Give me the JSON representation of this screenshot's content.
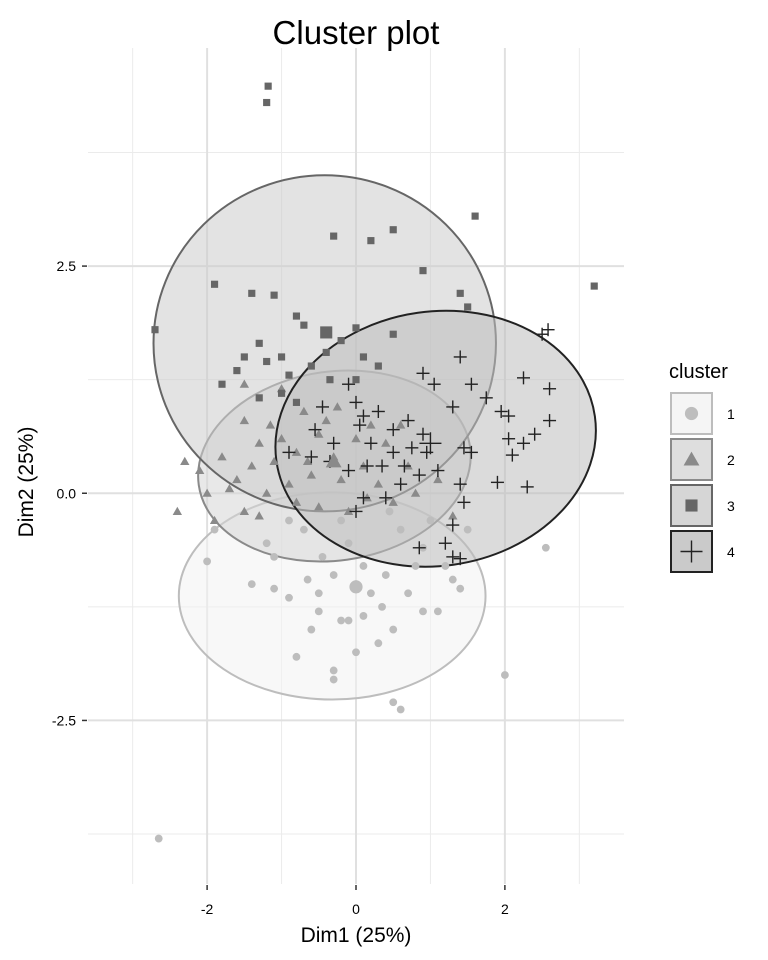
{
  "chart_data": {
    "type": "scatter",
    "title": "Cluster plot",
    "xlabel": "Dim1 (25%)",
    "ylabel": "Dim2 (25%)",
    "xlim": [
      -3.6,
      3.6
    ],
    "ylim": [
      -4.3,
      4.9
    ],
    "x_ticks": [
      -2,
      0,
      2
    ],
    "x_tick_labels": [
      "-2",
      "0",
      "2"
    ],
    "y_ticks": [
      -2.5,
      0.0,
      2.5
    ],
    "y_tick_labels": [
      "-2.5",
      "0.0",
      "2.5"
    ],
    "grid": true,
    "legend_title": "cluster",
    "legend_position": "right",
    "series": [
      {
        "name": "1",
        "shape": "circle",
        "color": "#bdbdbd",
        "fill": "#f2f2f2",
        "ellipse": {
          "cx": -0.32,
          "cy": -1.13,
          "rx": 2.06,
          "ry": 1.14,
          "angle": 0
        },
        "center": [
          0.0,
          -1.03
        ],
        "points": [
          [
            -2.65,
            -3.8
          ],
          [
            2.0,
            -2.0
          ],
          [
            2.55,
            -0.6
          ],
          [
            0.5,
            -2.3
          ],
          [
            0.6,
            -2.38
          ],
          [
            -0.3,
            -2.05
          ],
          [
            -0.3,
            -1.95
          ],
          [
            -0.8,
            -1.8
          ],
          [
            0.0,
            -1.75
          ],
          [
            0.3,
            -1.65
          ],
          [
            -0.6,
            -1.5
          ],
          [
            -0.2,
            -1.4
          ],
          [
            0.1,
            -1.35
          ],
          [
            -0.1,
            -1.4
          ],
          [
            0.5,
            -1.5
          ],
          [
            0.9,
            -1.3
          ],
          [
            1.1,
            -1.3
          ],
          [
            -1.1,
            -1.05
          ],
          [
            -0.9,
            -1.15
          ],
          [
            -1.4,
            -1.0
          ],
          [
            -2.0,
            -0.75
          ],
          [
            -1.9,
            -0.4
          ],
          [
            -1.1,
            -0.7
          ],
          [
            -0.5,
            -1.1
          ],
          [
            0.2,
            -1.1
          ],
          [
            0.4,
            -0.9
          ],
          [
            0.7,
            -1.1
          ],
          [
            1.2,
            -0.8
          ],
          [
            1.3,
            -0.95
          ],
          [
            -0.45,
            -0.7
          ],
          [
            0.9,
            -0.6
          ],
          [
            -0.7,
            -0.4
          ],
          [
            -0.1,
            -0.55
          ],
          [
            0.6,
            -0.4
          ],
          [
            1.5,
            -0.4
          ],
          [
            -1.2,
            -0.55
          ],
          [
            -0.3,
            -0.9
          ],
          [
            0.1,
            -0.8
          ],
          [
            -0.5,
            -1.3
          ],
          [
            0.35,
            -1.25
          ],
          [
            0.8,
            -0.8
          ],
          [
            1.4,
            -1.05
          ],
          [
            -0.2,
            -0.3
          ],
          [
            0.45,
            -0.2
          ],
          [
            -0.9,
            -0.3
          ],
          [
            1.0,
            -0.3
          ],
          [
            -0.65,
            -0.95
          ],
          [
            0.0,
            -1.0
          ]
        ]
      },
      {
        "name": "2",
        "shape": "triangle",
        "color": "#8a8a8a",
        "fill": "#d6d6d6",
        "ellipse": {
          "cx": -0.29,
          "cy": 0.3,
          "rx": 1.84,
          "ry": 1.04,
          "angle": -8
        },
        "center": [
          -0.3,
          0.35
        ],
        "points": [
          [
            -2.4,
            -0.2
          ],
          [
            -2.0,
            0.0
          ],
          [
            -2.1,
            0.25
          ],
          [
            -2.3,
            0.35
          ],
          [
            -1.8,
            0.4
          ],
          [
            -1.6,
            0.15
          ],
          [
            -1.4,
            0.3
          ],
          [
            -1.2,
            0.0
          ],
          [
            -1.1,
            0.35
          ],
          [
            -1.5,
            -0.2
          ],
          [
            -1.7,
            0.05
          ],
          [
            -1.3,
            -0.25
          ],
          [
            -0.9,
            0.1
          ],
          [
            -1.0,
            0.6
          ],
          [
            -0.8,
            0.45
          ],
          [
            -1.15,
            0.75
          ],
          [
            -1.5,
            0.8
          ],
          [
            -1.5,
            1.2
          ],
          [
            -1.0,
            1.15
          ],
          [
            -0.7,
            0.9
          ],
          [
            -0.5,
            0.65
          ],
          [
            -0.3,
            0.4
          ],
          [
            -0.6,
            0.2
          ],
          [
            -0.2,
            0.15
          ],
          [
            0.1,
            0.3
          ],
          [
            0.3,
            0.1
          ],
          [
            0.0,
            0.6
          ],
          [
            -0.4,
            0.8
          ],
          [
            0.4,
            0.55
          ],
          [
            0.7,
            0.3
          ],
          [
            0.8,
            0.0
          ],
          [
            0.5,
            -0.1
          ],
          [
            -0.1,
            -0.2
          ],
          [
            -0.5,
            -0.15
          ],
          [
            0.2,
            0.75
          ],
          [
            -0.8,
            -0.1
          ],
          [
            0.6,
            0.75
          ],
          [
            1.1,
            0.15
          ],
          [
            1.3,
            -0.25
          ],
          [
            -0.25,
            0.95
          ],
          [
            -1.9,
            -0.3
          ],
          [
            -1.3,
            0.55
          ],
          [
            -0.65,
            0.35
          ],
          [
            0.15,
            -0.05
          ]
        ]
      },
      {
        "name": "3",
        "shape": "square",
        "color": "#666666",
        "fill": "#cccccc",
        "ellipse": {
          "cx": -0.42,
          "cy": 1.65,
          "rx": 2.3,
          "ry": 1.85,
          "angle": 0
        },
        "center": [
          -0.4,
          1.77
        ],
        "points": [
          [
            -1.2,
            4.3
          ],
          [
            -1.18,
            4.48
          ],
          [
            1.6,
            3.05
          ],
          [
            3.2,
            2.28
          ],
          [
            -0.3,
            2.83
          ],
          [
            0.2,
            2.78
          ],
          [
            0.5,
            2.9
          ],
          [
            0.9,
            2.45
          ],
          [
            -1.9,
            2.3
          ],
          [
            -1.4,
            2.2
          ],
          [
            -1.1,
            2.18
          ],
          [
            -2.7,
            1.8
          ],
          [
            -0.8,
            1.95
          ],
          [
            -0.7,
            1.85
          ],
          [
            -1.3,
            1.65
          ],
          [
            -1.5,
            1.5
          ],
          [
            -1.0,
            1.5
          ],
          [
            -0.2,
            1.68
          ],
          [
            1.4,
            2.2
          ],
          [
            1.5,
            2.05
          ],
          [
            -1.2,
            1.45
          ],
          [
            -0.9,
            1.3
          ],
          [
            -0.6,
            1.4
          ],
          [
            -1.6,
            1.35
          ],
          [
            -1.8,
            1.2
          ],
          [
            -0.4,
            1.55
          ],
          [
            0.1,
            1.5
          ],
          [
            0.5,
            1.75
          ],
          [
            0.3,
            1.4
          ],
          [
            -0.35,
            1.25
          ],
          [
            -1.0,
            1.1
          ],
          [
            -0.8,
            1.0
          ],
          [
            0.0,
            1.82
          ],
          [
            0.0,
            1.25
          ],
          [
            -1.3,
            1.05
          ]
        ]
      },
      {
        "name": "4",
        "shape": "plus",
        "color": "#222222",
        "fill": "#bdbdbd",
        "ellipse": {
          "cx": 1.07,
          "cy": 0.6,
          "rx": 2.16,
          "ry": 1.4,
          "angle": -8
        },
        "center": [
          1.0,
          0.55
        ],
        "points": [
          [
            2.5,
            1.75
          ],
          [
            2.58,
            1.8
          ],
          [
            2.25,
            1.27
          ],
          [
            1.4,
            1.5
          ],
          [
            0.9,
            1.32
          ],
          [
            1.05,
            1.2
          ],
          [
            1.55,
            1.2
          ],
          [
            1.75,
            1.05
          ],
          [
            1.3,
            0.95
          ],
          [
            1.95,
            0.9
          ],
          [
            2.05,
            0.85
          ],
          [
            2.6,
            1.15
          ],
          [
            2.6,
            0.8
          ],
          [
            2.4,
            0.65
          ],
          [
            2.05,
            0.6
          ],
          [
            2.25,
            0.55
          ],
          [
            2.1,
            0.42
          ],
          [
            1.45,
            0.5
          ],
          [
            1.55,
            0.45
          ],
          [
            0.9,
            0.65
          ],
          [
            0.7,
            0.8
          ],
          [
            0.5,
            0.7
          ],
          [
            0.3,
            0.9
          ],
          [
            0.1,
            0.85
          ],
          [
            -0.1,
            1.2
          ],
          [
            0.0,
            1.0
          ],
          [
            -0.45,
            0.95
          ],
          [
            0.05,
            0.75
          ],
          [
            0.2,
            0.55
          ],
          [
            0.5,
            0.45
          ],
          [
            0.75,
            0.5
          ],
          [
            0.95,
            0.45
          ],
          [
            0.85,
            0.2
          ],
          [
            0.65,
            0.3
          ],
          [
            0.35,
            0.3
          ],
          [
            0.15,
            0.3
          ],
          [
            -0.1,
            0.25
          ],
          [
            -0.35,
            0.35
          ],
          [
            -0.6,
            0.4
          ],
          [
            -0.9,
            0.45
          ],
          [
            -0.3,
            0.55
          ],
          [
            -0.55,
            0.7
          ],
          [
            0.6,
            0.1
          ],
          [
            1.1,
            0.25
          ],
          [
            1.4,
            0.1
          ],
          [
            1.45,
            -0.1
          ],
          [
            1.3,
            -0.35
          ],
          [
            1.2,
            -0.55
          ],
          [
            1.3,
            -0.7
          ],
          [
            1.4,
            -0.72
          ],
          [
            0.85,
            -0.6
          ],
          [
            2.3,
            0.07
          ],
          [
            1.9,
            0.12
          ],
          [
            0.4,
            -0.05
          ],
          [
            0.0,
            -0.2
          ],
          [
            0.1,
            -0.05
          ]
        ]
      }
    ]
  }
}
